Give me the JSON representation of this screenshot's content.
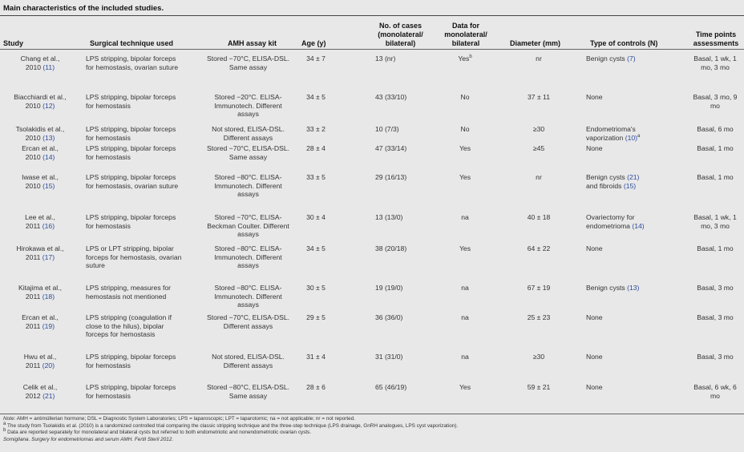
{
  "caption": "Main characteristics of the included studies.",
  "headers": {
    "study": "Study",
    "tech": "Surgical technique used",
    "kit": "AMH assay kit",
    "age": "Age (y)",
    "cases_1": "No. of cases",
    "cases_2": "(monolateral/",
    "cases_3": "bilateral)",
    "data_1": "Data for",
    "data_2": "monolateral/",
    "data_3": "bilateral",
    "diam": "Diameter (mm)",
    "ctrl": "Type of controls (N)",
    "time_1": "Time points",
    "time_2": "assessments"
  },
  "rows": [
    {
      "study_line1": "Chang et al.,",
      "study_line2": "2010",
      "ref": "(11)",
      "tech": "LPS stripping, bipolar forceps for hemostasis, ovarian suture",
      "kit": "Stored −70°C, ELISA-DSL. Same assay",
      "age": "34 ± 7",
      "cases": "13 (nr)",
      "data": "Yes",
      "data_sup": "b",
      "diam": "nr",
      "ctrl_text": "Benign cysts",
      "ctrl_ref": "(7)",
      "ctrl_text2": "",
      "ctrl_ref2": "",
      "ctrl_sup": "",
      "time": "Basal, 1 wk, 1 mo, 3 mo"
    },
    {
      "study_line1": "Biacchiardi et al.,",
      "study_line2": "2010",
      "ref": "(12)",
      "tech": "LPS stripping, bipolar forceps for hemostasis",
      "kit": "Stored −20°C. ELISA-Immunotech. Different assays",
      "age": "34 ± 5",
      "cases": "43 (33/10)",
      "data": "No",
      "data_sup": "",
      "diam": "37 ± 11",
      "ctrl_text": "None",
      "ctrl_ref": "",
      "ctrl_text2": "",
      "ctrl_ref2": "",
      "ctrl_sup": "",
      "time": "Basal, 3 mo, 9 mo"
    },
    {
      "study_line1": "Tsolakidis et al.,",
      "study_line2": "2010",
      "ref": "(13)",
      "tech": "LPS stripping, bipolar forceps for hemostasis",
      "kit": "Not stored, ELISA-DSL. Different assays",
      "age": "33 ± 2",
      "cases": "10 (7/3)",
      "data": "No",
      "data_sup": "",
      "diam": "≥30",
      "ctrl_text": "Endometrioma's vaporization",
      "ctrl_ref": "(10)",
      "ctrl_text2": "",
      "ctrl_ref2": "",
      "ctrl_sup": "a",
      "time": "Basal, 6 mo"
    },
    {
      "study_line1": "Ercan et al.,",
      "study_line2": "2010",
      "ref": "(14)",
      "tech": "LPS stripping, bipolar forceps for hemostasis",
      "kit": "Stored −70°C, ELISA-DSL. Same assay",
      "age": "28 ± 4",
      "cases": "47 (33/14)",
      "data": "Yes",
      "data_sup": "",
      "diam": "≥45",
      "ctrl_text": "None",
      "ctrl_ref": "",
      "ctrl_text2": "",
      "ctrl_ref2": "",
      "ctrl_sup": "",
      "time": "Basal, 1 mo"
    },
    {
      "study_line1": "Iwase et al.,",
      "study_line2": "2010",
      "ref": "(15)",
      "tech": "LPS stripping, bipolar forceps for hemostasis, ovarian suture",
      "kit": "Stored −80°C. ELISA-Immunotech. Different assays",
      "age": "33 ± 5",
      "cases": "29 (16/13)",
      "data": "Yes",
      "data_sup": "",
      "diam": "nr",
      "ctrl_text": "Benign cysts",
      "ctrl_ref": "(21)",
      "ctrl_text2": "and fibroids",
      "ctrl_ref2": "(15)",
      "ctrl_sup": "",
      "time": "Basal, 1 mo"
    },
    {
      "study_line1": "Lee et al.,",
      "study_line2": "2011",
      "ref": "(16)",
      "tech": "LPS stripping, bipolar forceps for hemostasis",
      "kit": "Stored −70°C, ELISA-Beckman Coulter. Different assays",
      "age": "30 ± 4",
      "cases": "13 (13/0)",
      "data": "na",
      "data_sup": "",
      "diam": "40 ± 18",
      "ctrl_text": "Ovariectomy for endometrioma",
      "ctrl_ref": "(14)",
      "ctrl_text2": "",
      "ctrl_ref2": "",
      "ctrl_sup": "",
      "time": "Basal, 1 wk, 1 mo, 3 mo"
    },
    {
      "study_line1": "Hirokawa et al.,",
      "study_line2": "2011",
      "ref": "(17)",
      "tech": "LPS or LPT stripping, bipolar forceps for hemostasis, ovarian suture",
      "kit": "Stored −80°C. ELISA-Immunotech. Different assays",
      "age": "34 ± 5",
      "cases": "38 (20/18)",
      "data": "Yes",
      "data_sup": "",
      "diam": "64 ± 22",
      "ctrl_text": "None",
      "ctrl_ref": "",
      "ctrl_text2": "",
      "ctrl_ref2": "",
      "ctrl_sup": "",
      "time": "Basal, 1 mo"
    },
    {
      "study_line1": "Kitajima et al.,",
      "study_line2": "2011",
      "ref": "(18)",
      "tech": "LPS stripping, measures for hemostasis not mentioned",
      "kit": "Stored −80°C. ELISA-Immunotech. Different assays",
      "age": "30 ± 5",
      "cases": "19 (19/0)",
      "data": "na",
      "data_sup": "",
      "diam": "67 ± 19",
      "ctrl_text": "Benign cysts",
      "ctrl_ref": "(13)",
      "ctrl_text2": "",
      "ctrl_ref2": "",
      "ctrl_sup": "",
      "time": "Basal, 3 mo"
    },
    {
      "study_line1": "Ercan et al.,",
      "study_line2": "2011",
      "ref": "(19)",
      "tech": "LPS stripping (coagulation if close to the hilus), bipolar forceps for hemostasis",
      "kit": "Stored −70°C, ELISA-DSL. Different assays",
      "age": "29 ± 5",
      "cases": "36 (36/0)",
      "data": "na",
      "data_sup": "",
      "diam": "25 ± 23",
      "ctrl_text": "None",
      "ctrl_ref": "",
      "ctrl_text2": "",
      "ctrl_ref2": "",
      "ctrl_sup": "",
      "time": "Basal, 3 mo"
    },
    {
      "study_line1": "Hwu et al.,",
      "study_line2": "2011",
      "ref": "(20)",
      "tech": "LPS stripping, bipolar forceps for hemostasis",
      "kit": "Not stored, ELISA-DSL. Different assays",
      "age": "31 ± 4",
      "cases": "31 (31/0)",
      "data": "na",
      "data_sup": "",
      "diam": "≥30",
      "ctrl_text": "None",
      "ctrl_ref": "",
      "ctrl_text2": "",
      "ctrl_ref2": "",
      "ctrl_sup": "",
      "time": "Basal, 3 mo"
    },
    {
      "study_line1": "Celik et al.,",
      "study_line2": "2012",
      "ref": "(21)",
      "tech": "LPS stripping, bipolar forceps for hemostasis",
      "kit": "Stored −80°C, ELISA-DSL. Same assay",
      "age": "28 ± 6",
      "cases": "65 (46/19)",
      "data": "Yes",
      "data_sup": "",
      "diam": "59 ± 21",
      "ctrl_text": "None",
      "ctrl_ref": "",
      "ctrl_text2": "",
      "ctrl_ref2": "",
      "ctrl_sup": "",
      "time": "Basal, 6 wk, 6 mo"
    }
  ],
  "notes": {
    "note_label": "Note:",
    "note": " AMH = antimüllerian hormone; DSL = Diagnostic System Laboratories; LPS = laparoscopic; LPT = laparotomic; na = not applicable; nr = not reported.",
    "a_sup": "a",
    "a": " The study from Tsolakidis et al. (2010) is a randomized controlled trial comparing the classic stripping technique and the three-step technique (LPS drainage, GnRH analogues, LPS cyst vaporization).",
    "b_sup": "b",
    "b": " Data are reported separately for monolateral and bilateral cysts but referred to both endometriotic and nonendometriotic ovarian cysts.",
    "source": "Somigliana. Surgery for endometriomas and serum AMH. Fertil Steril 2012."
  }
}
